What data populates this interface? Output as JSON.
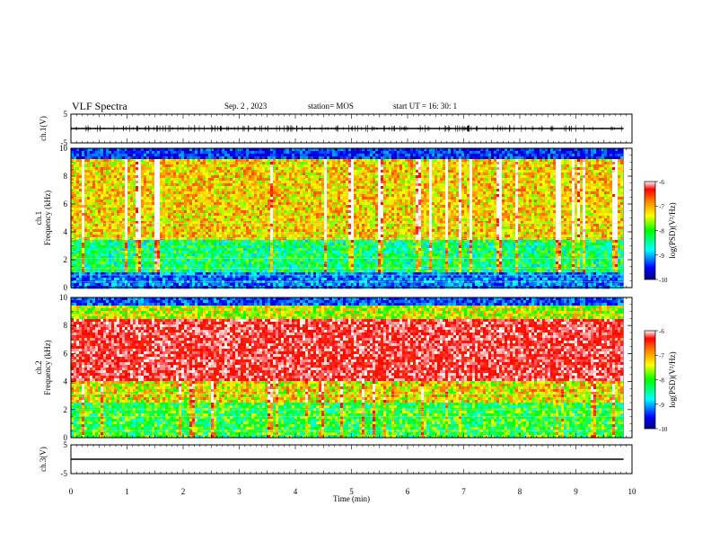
{
  "header": {
    "title": "VLF Spectra",
    "date": "Sep. 2 , 2023",
    "station": "station= MOS",
    "start": "start UT = 16: 30: 1"
  },
  "chart_data": [
    {
      "type": "line",
      "panel": "ch1-waveform",
      "ylabel": "ch.1(V)",
      "ylim": [
        -5,
        5
      ],
      "yticks": [
        "5",
        "-5"
      ],
      "xlim": [
        0,
        10
      ]
    },
    {
      "type": "heatmap",
      "panel": "ch1-spectrogram",
      "ylabel_line1": "ch.1",
      "ylabel_line2": "Frequency (kHz)",
      "ylim": [
        0,
        10
      ],
      "yticks": [
        "0",
        "2",
        "4",
        "6",
        "8",
        "10"
      ],
      "xlim": [
        0,
        10
      ],
      "colorbar": {
        "label": "log(PSD)(V²/Hz)",
        "range": [
          -10,
          -6
        ],
        "ticks": [
          "-6",
          "-7",
          "-8",
          "-9",
          "-10"
        ]
      }
    },
    {
      "type": "heatmap",
      "panel": "ch2-spectrogram",
      "ylabel_line1": "ch.2",
      "ylabel_line2": "Frequency (kHz)",
      "ylim": [
        0,
        10
      ],
      "yticks": [
        "0",
        "2",
        "4",
        "6",
        "8",
        "10"
      ],
      "xlim": [
        0,
        10
      ],
      "colorbar": {
        "label": "log(PSD)(V²/Hz)",
        "range": [
          -10,
          -6
        ],
        "ticks": [
          "-6",
          "-7",
          "-8",
          "-9",
          "-10"
        ]
      }
    },
    {
      "type": "line",
      "panel": "ch3-waveform",
      "ylabel": "ch.3(V)",
      "ylim": [
        -5,
        5
      ],
      "yticks": [
        "5",
        "-5"
      ],
      "xlim": [
        0,
        10
      ]
    }
  ],
  "xaxis": {
    "label": "Time (min)",
    "ticks": [
      "0",
      "1",
      "2",
      "3",
      "4",
      "5",
      "6",
      "7",
      "8",
      "9",
      "10"
    ]
  }
}
